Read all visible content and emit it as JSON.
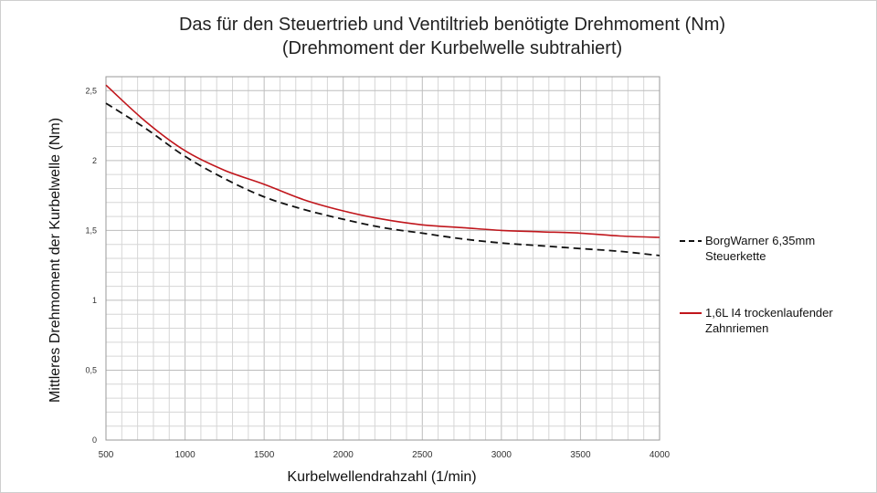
{
  "chart_data": {
    "type": "line",
    "title": "Das für den Steuertrieb und Ventiltrieb benötigte Drehmoment (Nm)",
    "subtitle": "(Drehmoment der Kurbelwelle subtrahiert)",
    "xlabel": "Kurbelwellendrahzahl (1/min)",
    "ylabel": "Mittleres Drehmoment der Kurbelwelle (Nm)",
    "xlim": [
      500,
      4000
    ],
    "ylim": [
      0,
      2.6
    ],
    "x_ticks": [
      500,
      1000,
      1500,
      2000,
      2500,
      3000,
      3500,
      4000
    ],
    "x_tick_labels": [
      "500",
      "1000",
      "1500",
      "2000",
      "2500",
      "3000",
      "3500",
      "4000"
    ],
    "y_ticks": [
      0,
      0.5,
      1,
      1.5,
      2,
      2.5
    ],
    "y_tick_labels": [
      "0",
      "0,5",
      "1",
      "1,5",
      "2",
      "2,5"
    ],
    "grid": true,
    "legend_position": "right",
    "series": [
      {
        "name": "BorgWarner 6,35mm Steuerkette",
        "name_lines": [
          "BorgWarner 6,35mm",
          "Steuerkette"
        ],
        "color": "#111111",
        "dash": "dashed",
        "x": [
          500,
          750,
          1000,
          1250,
          1500,
          1750,
          2000,
          2250,
          2500,
          2750,
          3000,
          3250,
          3500,
          3750,
          4000
        ],
        "y": [
          2.41,
          2.23,
          2.03,
          1.87,
          1.74,
          1.65,
          1.58,
          1.52,
          1.48,
          1.44,
          1.41,
          1.39,
          1.37,
          1.35,
          1.32
        ]
      },
      {
        "name": "1,6L I4 trockenlaufender Zahnriemen",
        "name_lines": [
          "1,6L I4 trockenlaufender",
          "Zahnriemen"
        ],
        "color": "#c0161c",
        "dash": "solid",
        "x": [
          500,
          750,
          1000,
          1250,
          1500,
          1750,
          2000,
          2250,
          2500,
          2750,
          3000,
          3250,
          3500,
          3750,
          4000
        ],
        "y": [
          2.54,
          2.28,
          2.07,
          1.93,
          1.83,
          1.72,
          1.64,
          1.58,
          1.54,
          1.52,
          1.5,
          1.49,
          1.48,
          1.46,
          1.45
        ]
      }
    ]
  }
}
